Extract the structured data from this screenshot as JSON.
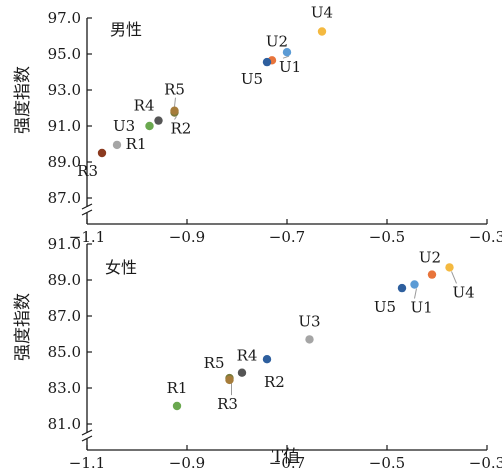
{
  "chart_data": [
    {
      "type": "scatter",
      "panel_title": "男性",
      "ylabel": "强度指数",
      "xlabel": "",
      "xlim": [
        -1.1,
        -0.3
      ],
      "ylim": [
        87.0,
        97.0
      ],
      "xticks": [
        -1.1,
        -0.9,
        -0.7,
        -0.5,
        -0.3
      ],
      "xtick_labels": [
        "−1.1",
        "−0.9",
        "−0.7",
        "−0.5",
        "−0.3"
      ],
      "yticks": [
        87.0,
        89.0,
        91.0,
        93.0,
        95.0,
        97.0
      ],
      "ytick_labels": [
        "87.0",
        "89.0",
        "91.0",
        "93.0",
        "95.0",
        "97.0"
      ],
      "axis_break": "y-bottom",
      "points": [
        {
          "label": "R1",
          "x": -0.975,
          "y": 91.0,
          "color": "#6aa84f"
        },
        {
          "label": "R2",
          "x": -0.925,
          "y": 91.75,
          "color": "#7a7a3a"
        },
        {
          "label": "R3",
          "x": -1.07,
          "y": 89.5,
          "color": "#8b3a1f"
        },
        {
          "label": "R4",
          "x": -0.957,
          "y": 91.3,
          "color": "#555555"
        },
        {
          "label": "R5",
          "x": -0.925,
          "y": 91.85,
          "color": "#a67c3a"
        },
        {
          "label": "U1",
          "x": -0.7,
          "y": 95.1,
          "color": "#5b9bd5"
        },
        {
          "label": "U2",
          "x": -0.73,
          "y": 94.65,
          "color": "#e8743b"
        },
        {
          "label": "U3",
          "x": -1.04,
          "y": 89.95,
          "color": "#a5a5a5"
        },
        {
          "label": "U4",
          "x": -0.63,
          "y": 96.25,
          "color": "#f4b940"
        },
        {
          "label": "U5",
          "x": -0.74,
          "y": 94.55,
          "color": "#2e5f9e"
        }
      ]
    },
    {
      "type": "scatter",
      "panel_title": "女性",
      "ylabel": "强度指数",
      "xlabel": "T值",
      "xlim": [
        -1.1,
        -0.3
      ],
      "ylim": [
        81.0,
        91.0
      ],
      "xticks": [
        -1.1,
        -0.9,
        -0.7,
        -0.5,
        -0.3
      ],
      "xtick_labels": [
        "−1.1",
        "−0.9",
        "−0.7",
        "−0.5",
        "−0.3"
      ],
      "yticks": [
        81.0,
        83.0,
        85.0,
        87.0,
        89.0,
        91.0
      ],
      "ytick_labels": [
        "81.0",
        "83.0",
        "85.0",
        "87.0",
        "89.0",
        "91.0"
      ],
      "axis_break": "y-bottom",
      "points": [
        {
          "label": "R1",
          "x": -0.92,
          "y": 82.0,
          "color": "#6aa84f"
        },
        {
          "label": "R2",
          "x": -0.74,
          "y": 84.6,
          "color": "#2e5f9e"
        },
        {
          "label": "R3",
          "x": -0.815,
          "y": 83.55,
          "color": "#7a7a3a"
        },
        {
          "label": "R4",
          "x": -0.79,
          "y": 83.85,
          "color": "#555555"
        },
        {
          "label": "R5",
          "x": -0.815,
          "y": 83.45,
          "color": "#a67c3a"
        },
        {
          "label": "U1",
          "x": -0.445,
          "y": 88.75,
          "color": "#5b9bd5"
        },
        {
          "label": "U2",
          "x": -0.41,
          "y": 89.3,
          "color": "#e8743b"
        },
        {
          "label": "U3",
          "x": -0.655,
          "y": 85.7,
          "color": "#a5a5a5"
        },
        {
          "label": "U4",
          "x": -0.375,
          "y": 89.7,
          "color": "#f4b940"
        },
        {
          "label": "U5",
          "x": -0.47,
          "y": 88.55,
          "color": "#2e5f9e"
        }
      ]
    }
  ]
}
